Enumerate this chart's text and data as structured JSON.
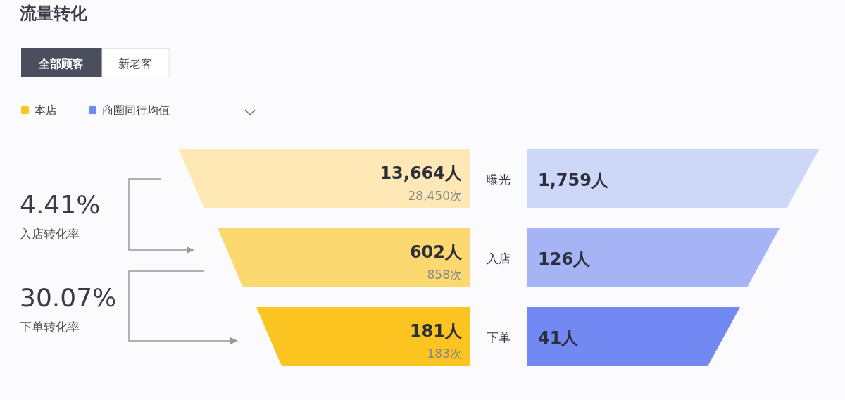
{
  "chart_data": {
    "type": "other",
    "title": "流量转化",
    "categories": [
      "曝光",
      "入店",
      "下单"
    ],
    "legend": "top left",
    "series": [
      {
        "name": "本店",
        "color": "#fcc421",
        "colors": [
          "#fee8b5",
          "#fcd870",
          "#fcc421"
        ],
        "values": [
          13664,
          602,
          181
        ],
        "value_labels": [
          "13,664人",
          "602人",
          "181人"
        ]
      },
      {
        "name": "商圈同行均值",
        "color": "#7289f4",
        "colors": [
          "#cdd7f8",
          "#a6b4f5",
          "#7289f4"
        ],
        "values": [
          1759,
          126,
          41
        ],
        "value_labels": [
          "1,759人",
          "126人",
          "41人"
        ]
      }
    ],
    "annotations": [
      "全部顾客",
      "新老客",
      "4.41%",
      "入店转化率",
      "30.07%",
      "下单转化率",
      {
        "text": "28,450次",
        "x": "曝光"
      },
      {
        "text": "858次",
        "x": "入店"
      },
      {
        "text": "183次",
        "x": "下单"
      }
    ]
  }
}
